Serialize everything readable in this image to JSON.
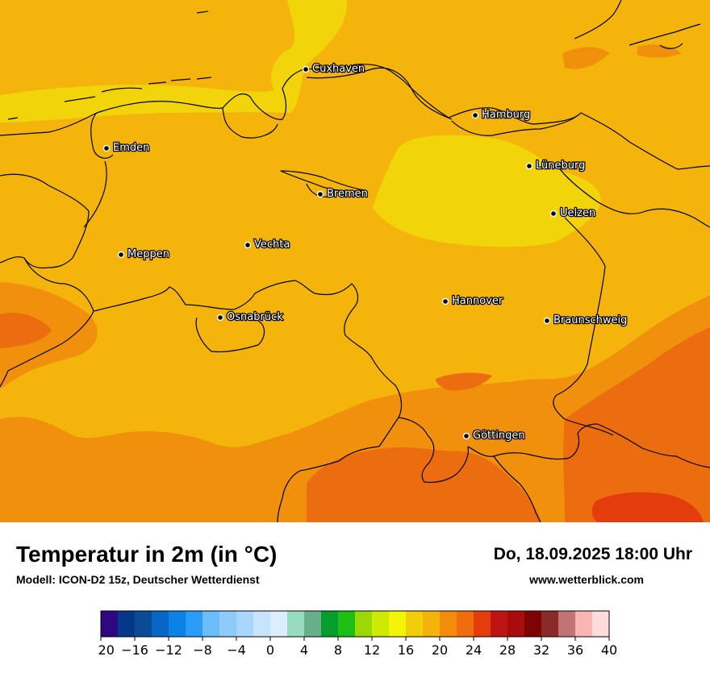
{
  "title": "Temperatur in 2m (in °C)",
  "subtitle": "Modell: ICON-D2 15z, Deutscher Wetterdienst",
  "datetime": "Do, 18.09.2025 18:00 Uhr",
  "website": "www.wetterblick.com",
  "cities": [
    {
      "name": "Cuxhaven"
    },
    {
      "name": "Hamburg"
    },
    {
      "name": "Emden"
    },
    {
      "name": "Lüneburg"
    },
    {
      "name": "Bremen"
    },
    {
      "name": "Uelzen"
    },
    {
      "name": "Vechta"
    },
    {
      "name": "Meppen"
    },
    {
      "name": "Hannover"
    },
    {
      "name": "Osnabrück"
    },
    {
      "name": "Braunschweig"
    },
    {
      "name": "Göttingen"
    }
  ],
  "colorbar": {
    "colors": [
      "#2e0882",
      "#05388a",
      "#0a4a96",
      "#0a66c4",
      "#0a82e6",
      "#2a9cf7",
      "#6cbcfa",
      "#8ecbfb",
      "#a9d6fc",
      "#c6e4fd",
      "#dceefe",
      "#98dcbf",
      "#68b08c",
      "#079e30",
      "#1ebe14",
      "#9ad806",
      "#ccea04",
      "#f4f40a",
      "#f2ce0a",
      "#f4b20a",
      "#f28c0a",
      "#f06c0c",
      "#e43c0c",
      "#be1414",
      "#a80c0c",
      "#7e0404",
      "#8a2a2a",
      "#c27474",
      "#fab4b4",
      "#fedcdc"
    ],
    "ticks": [
      "−20",
      "−16",
      "−12",
      "−8",
      "−4",
      "0",
      "4",
      "8",
      "12",
      "16",
      "20",
      "24",
      "28",
      "32",
      "36",
      "40"
    ]
  }
}
